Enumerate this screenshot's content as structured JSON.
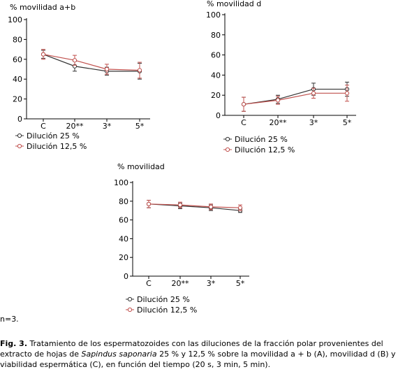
{
  "charts": {
    "a": {
      "title": "% movilidad a+b",
      "categories": [
        "C",
        "20**",
        "3*",
        "5*"
      ],
      "yticks": [
        0,
        20,
        40,
        60,
        80,
        100
      ],
      "series": [
        {
          "name": "Dilución 25 %",
          "color": "#333333",
          "values": [
            65,
            53,
            48,
            48
          ],
          "errors": [
            4,
            5,
            4,
            8
          ]
        },
        {
          "name": "Dilución 12,5 %",
          "color": "#c0504d",
          "values": [
            65,
            59,
            50,
            49
          ],
          "errors": [
            5,
            5,
            5,
            8
          ]
        }
      ]
    },
    "b": {
      "title": "% movilidad d",
      "categories": [
        "C",
        "20**",
        "3*",
        "5*"
      ],
      "yticks": [
        0,
        20,
        40,
        60,
        80,
        100
      ],
      "series": [
        {
          "name": "Dilución 25 %",
          "color": "#333333",
          "values": [
            11,
            16,
            26,
            26
          ],
          "errors": [
            7,
            4,
            6,
            7
          ]
        },
        {
          "name": "Dilución 12,5 %",
          "color": "#c0504d",
          "values": [
            11,
            15,
            22,
            22
          ],
          "errors": [
            7,
            4,
            5,
            8
          ]
        }
      ]
    },
    "c": {
      "title": "% movilidad",
      "categories": [
        "C",
        "20**",
        "3*",
        "5*"
      ],
      "yticks": [
        0,
        20,
        40,
        60,
        80,
        100
      ],
      "series": [
        {
          "name": "Dilución 25 %",
          "color": "#333333",
          "values": [
            77,
            75,
            73,
            70
          ],
          "errors": [
            4,
            3,
            3,
            2
          ]
        },
        {
          "name": "Dilución 12,5 %",
          "color": "#c0504d",
          "values": [
            77,
            76,
            74,
            73
          ],
          "errors": [
            4,
            3,
            3,
            3
          ]
        }
      ]
    }
  },
  "chart_data": [
    {
      "type": "line",
      "title": "% movilidad a+b",
      "categories": [
        "C",
        "20**",
        "3*",
        "5*"
      ],
      "ylim": [
        0,
        100
      ],
      "series": [
        {
          "name": "Dilución 25 %",
          "values": [
            65,
            53,
            48,
            48
          ]
        },
        {
          "name": "Dilución 12,5 %",
          "values": [
            65,
            59,
            50,
            49
          ]
        }
      ]
    },
    {
      "type": "line",
      "title": "% movilidad d",
      "categories": [
        "C",
        "20**",
        "3*",
        "5*"
      ],
      "ylim": [
        0,
        100
      ],
      "series": [
        {
          "name": "Dilución 25 %",
          "values": [
            11,
            16,
            26,
            26
          ]
        },
        {
          "name": "Dilución 12,5 %",
          "values": [
            11,
            15,
            22,
            22
          ]
        }
      ]
    },
    {
      "type": "line",
      "title": "% movilidad",
      "categories": [
        "C",
        "20**",
        "3*",
        "5*"
      ],
      "ylim": [
        0,
        100
      ],
      "series": [
        {
          "name": "Dilución 25 %",
          "values": [
            77,
            75,
            73,
            70
          ]
        },
        {
          "name": "Dilución 12,5 %",
          "values": [
            77,
            76,
            74,
            73
          ]
        }
      ]
    }
  ],
  "note": "n=3.",
  "caption": {
    "label": "Fig. 3.",
    "text_1": " Tratamiento de los espermatozoides con las diluciones de la fracción polar provenientes del extracto de hojas de ",
    "species": "Sapindus saponaria",
    "text_2": " 25 % y 12,5 % sobre la movilidad a + b (A), movilidad d (B) y viabilidad espermática (C), en función del tiempo (20 s, 3 min, 5 min)."
  }
}
